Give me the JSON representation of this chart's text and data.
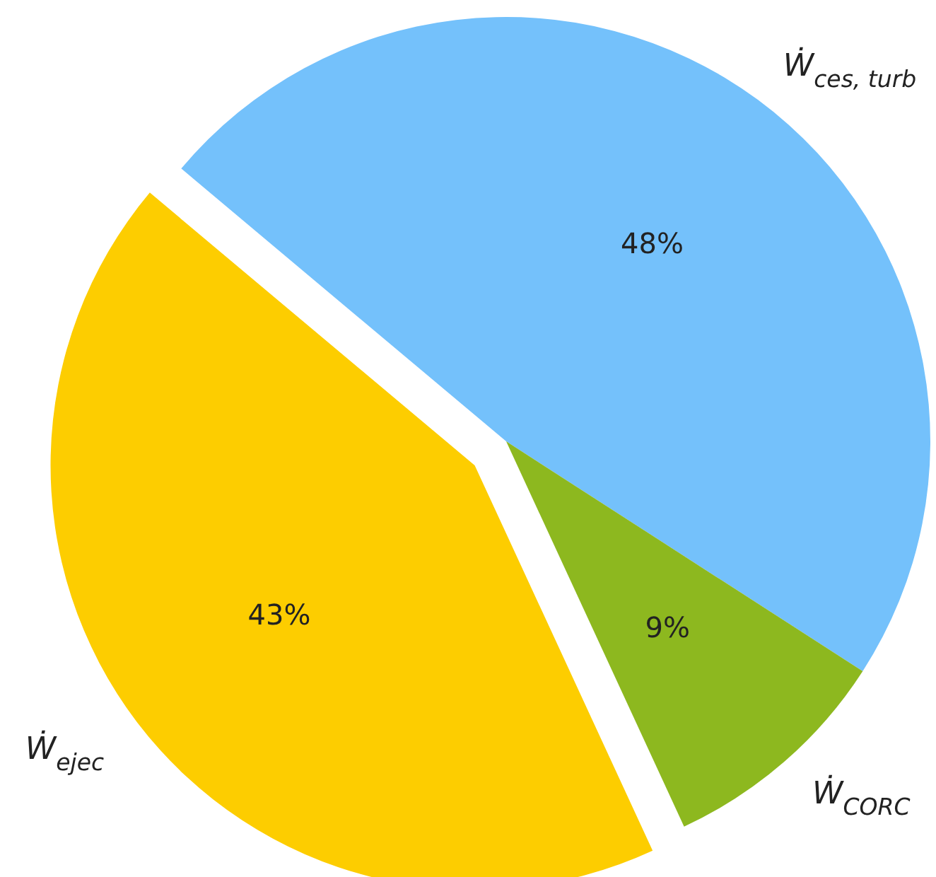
{
  "chart_data": {
    "type": "pie",
    "categories": [
      "Ẇ$_{ces, turb}$",
      "Ẇ$_{CORC}$",
      "Ẇ$_{ejec}$"
    ],
    "values": [
      48,
      9,
      43
    ],
    "colors": [
      "#74c1fb",
      "#8db81f",
      "#fdcd00"
    ],
    "value_labels": [
      "48%",
      "9%",
      "43%"
    ]
  }
}
